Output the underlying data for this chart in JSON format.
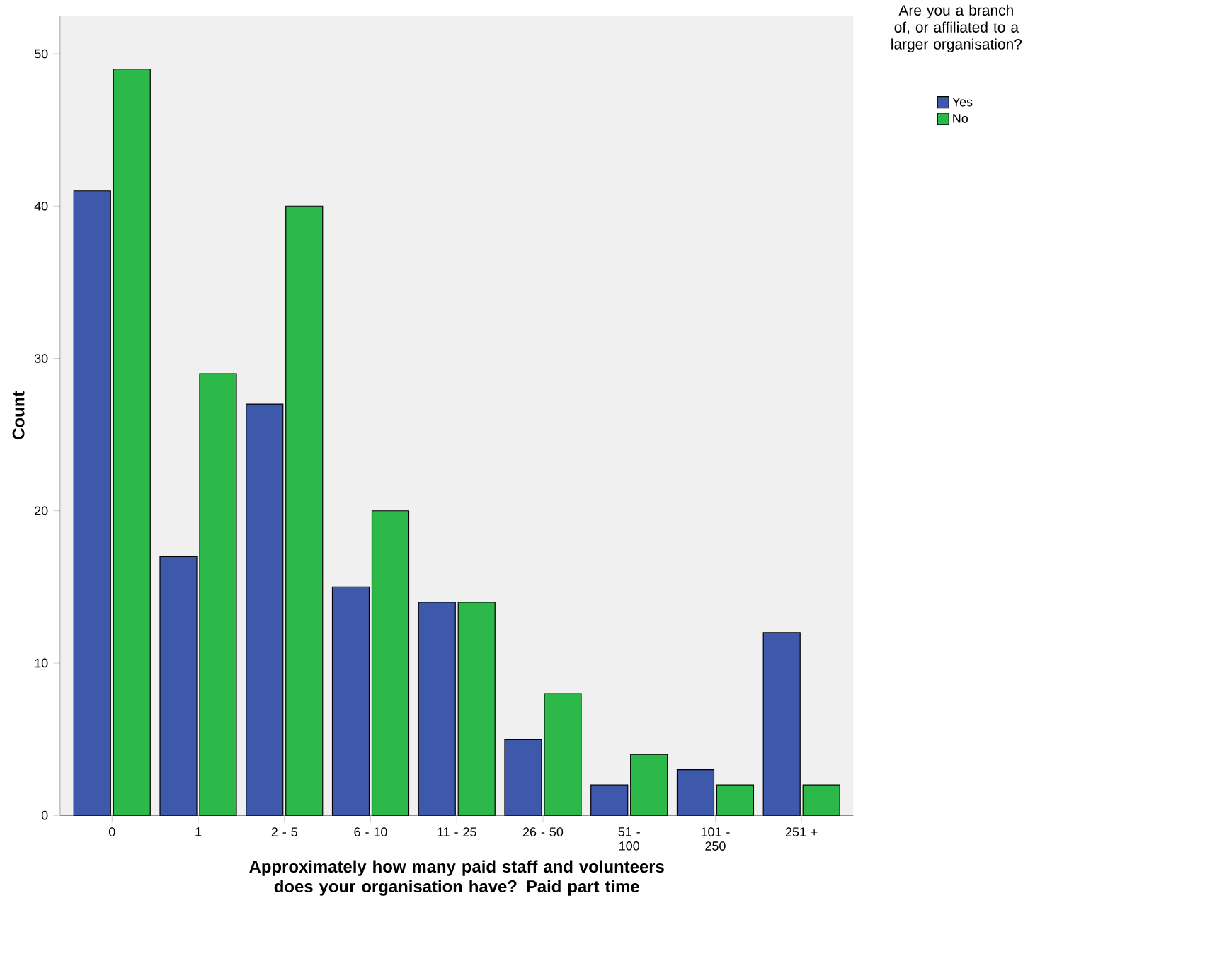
{
  "chart_data": {
    "type": "bar",
    "xlabel": "Approximately how many paid staff and volunteers does your organisation have?  Paid part time",
    "ylabel": "Count",
    "legend_title": "Are you a branch of, or affiliated to a larger organisation?",
    "categories": [
      "0",
      "1",
      "2 - 5",
      "6 - 10",
      "11 - 25",
      "26 - 50",
      "51 - 100",
      "101 - 250",
      "251 +"
    ],
    "series": [
      {
        "name": "Yes",
        "color": "#3e58ac",
        "values": [
          41,
          17,
          27,
          15,
          14,
          5,
          2,
          3,
          12
        ]
      },
      {
        "name": "No",
        "color": "#2db84a",
        "values": [
          49,
          29,
          40,
          20,
          14,
          8,
          4,
          2,
          2
        ]
      }
    ],
    "ylim": [
      0,
      52.5
    ],
    "yticks": [
      0,
      10,
      20,
      30,
      40,
      50
    ],
    "grid": false,
    "legend": "right"
  }
}
